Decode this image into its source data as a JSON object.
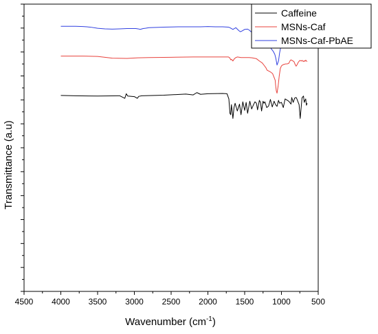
{
  "chart_data": {
    "type": "line",
    "title": "",
    "xlabel": "Wavenumber (cm",
    "xlabel_sup": "-1",
    "xlabel_end": ")",
    "ylabel": "Transmittance (a.u)",
    "x_axis_reversed": true,
    "xlim": [
      4500,
      500
    ],
    "ylim": [
      0,
      1
    ],
    "x_ticks": [
      "4500",
      "4000",
      "3500",
      "3000",
      "2500",
      "2000",
      "1500",
      "1000",
      "500"
    ],
    "y_tick_labels_shown": false,
    "grid": false,
    "legend_position": "top-right",
    "series": [
      {
        "name": "Caffeine",
        "color": "#000000",
        "x": [
          4000,
          3800,
          3500,
          3200,
          3130,
          3110,
          3090,
          3000,
          2960,
          2940,
          2900,
          2600,
          2300,
          2200,
          2150,
          2100,
          2000,
          1800,
          1740,
          1715,
          1700,
          1690,
          1680,
          1660,
          1645,
          1630,
          1600,
          1570,
          1550,
          1525,
          1500,
          1480,
          1460,
          1430,
          1405,
          1380,
          1360,
          1340,
          1325,
          1300,
          1285,
          1270,
          1250,
          1238,
          1225,
          1200,
          1175,
          1150,
          1125,
          1100,
          1080,
          1060,
          1040,
          1025,
          1000,
          975,
          950,
          900,
          870,
          860,
          840,
          820,
          800,
          790,
          760,
          745,
          720,
          700,
          690,
          680,
          670,
          660,
          650
        ],
        "y": [
          0.318,
          0.319,
          0.32,
          0.319,
          0.328,
          0.312,
          0.32,
          0.322,
          0.328,
          0.321,
          0.319,
          0.317,
          0.313,
          0.316,
          0.308,
          0.314,
          0.312,
          0.311,
          0.312,
          0.33,
          0.38,
          0.385,
          0.35,
          0.398,
          0.36,
          0.345,
          0.372,
          0.348,
          0.385,
          0.34,
          0.37,
          0.342,
          0.38,
          0.338,
          0.365,
          0.35,
          0.34,
          0.345,
          0.368,
          0.335,
          0.342,
          0.372,
          0.338,
          0.345,
          0.34,
          0.36,
          0.355,
          0.332,
          0.358,
          0.338,
          0.35,
          0.356,
          0.335,
          0.345,
          0.342,
          0.36,
          0.33,
          0.338,
          0.348,
          0.325,
          0.342,
          0.327,
          0.325,
          0.33,
          0.35,
          0.398,
          0.326,
          0.32,
          0.342,
          0.335,
          0.33,
          0.352,
          0.345
        ]
      },
      {
        "name": "MSNs-Caf",
        "color": "#e8413b",
        "x": [
          4000,
          3700,
          3500,
          3400,
          3300,
          3100,
          2950,
          2800,
          2500,
          2200,
          2000,
          1850,
          1750,
          1720,
          1700,
          1690,
          1680,
          1660,
          1640,
          1620,
          1600,
          1570,
          1550,
          1520,
          1500,
          1480,
          1460,
          1440,
          1400,
          1340,
          1300,
          1260,
          1230,
          1210,
          1195,
          1180,
          1150,
          1120,
          1100,
          1085,
          1080,
          1070,
          1060,
          1045,
          1030,
          1015,
          1000,
          985,
          970,
          955,
          940,
          920,
          900,
          880,
          870,
          850,
          830,
          810,
          800,
          790,
          770,
          750,
          730,
          720,
          700,
          690,
          680,
          670,
          660,
          650
        ],
        "y": [
          0.181,
          0.181,
          0.182,
          0.185,
          0.188,
          0.189,
          0.187,
          0.186,
          0.185,
          0.184,
          0.184,
          0.184,
          0.184,
          0.184,
          0.188,
          0.194,
          0.192,
          0.198,
          0.19,
          0.186,
          0.184,
          0.185,
          0.186,
          0.186,
          0.186,
          0.186,
          0.186,
          0.186,
          0.187,
          0.19,
          0.198,
          0.205,
          0.215,
          0.222,
          0.23,
          0.232,
          0.236,
          0.242,
          0.255,
          0.265,
          0.28,
          0.302,
          0.31,
          0.285,
          0.25,
          0.224,
          0.215,
          0.212,
          0.21,
          0.209,
          0.208,
          0.208,
          0.206,
          0.196,
          0.194,
          0.197,
          0.2,
          0.212,
          0.216,
          0.212,
          0.202,
          0.196,
          0.198,
          0.196,
          0.2,
          0.197,
          0.199,
          0.195,
          0.198,
          0.2
        ]
      },
      {
        "name": "MSNs-Caf-PbAE",
        "color": "#2f3fe0",
        "x": [
          4000,
          3800,
          3700,
          3600,
          3500,
          3400,
          3300,
          3200,
          3100,
          2980,
          2950,
          2920,
          2880,
          2850,
          2800,
          2600,
          2400,
          2200,
          2100,
          2000,
          1900,
          1800,
          1720,
          1700,
          1680,
          1660,
          1640,
          1620,
          1600,
          1580,
          1560,
          1540,
          1500,
          1460,
          1440,
          1410,
          1390,
          1370,
          1350,
          1320,
          1290,
          1265,
          1250,
          1235,
          1220,
          1200,
          1170,
          1140,
          1110,
          1090,
          1075,
          1060,
          1040,
          1025,
          1010,
          995,
          980,
          960,
          940,
          920,
          900,
          880,
          860,
          850,
          830,
          810,
          800,
          790,
          770,
          750,
          730,
          710,
          700,
          690,
          680,
          670,
          660,
          650
        ],
        "y": [
          0.077,
          0.077,
          0.078,
          0.08,
          0.084,
          0.086,
          0.087,
          0.086,
          0.085,
          0.085,
          0.086,
          0.088,
          0.085,
          0.084,
          0.082,
          0.08,
          0.079,
          0.079,
          0.079,
          0.078,
          0.079,
          0.079,
          0.08,
          0.082,
          0.085,
          0.088,
          0.085,
          0.082,
          0.087,
          0.092,
          0.096,
          0.094,
          0.088,
          0.087,
          0.09,
          0.097,
          0.099,
          0.096,
          0.093,
          0.095,
          0.1,
          0.11,
          0.125,
          0.128,
          0.13,
          0.135,
          0.142,
          0.155,
          0.165,
          0.175,
          0.19,
          0.212,
          0.198,
          0.17,
          0.15,
          0.14,
          0.137,
          0.135,
          0.125,
          0.112,
          0.102,
          0.1,
          0.102,
          0.104,
          0.115,
          0.125,
          0.127,
          0.12,
          0.11,
          0.108,
          0.11,
          0.107,
          0.111,
          0.109,
          0.11,
          0.107,
          0.11,
          0.108
        ]
      }
    ]
  }
}
